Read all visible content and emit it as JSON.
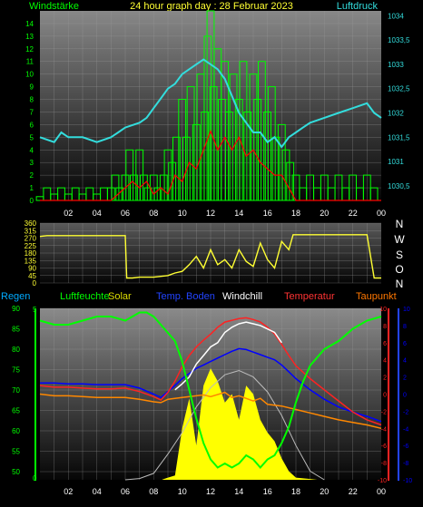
{
  "header": {
    "left_label": "Windstärke",
    "title": "24 hour graph day : 28 Februar 2023",
    "right_label": "Luftdruck"
  },
  "colors": {
    "wind": "#00ff00",
    "gust": "#ff0000",
    "pressure": "#33dddd",
    "direction": "#ffff33",
    "humidity": "#00ff00",
    "solar": "#ffff00",
    "soil_temp": "#0000ff",
    "windchill": "#ffffff",
    "temperature": "#ff2222",
    "dewpoint": "#ff8800",
    "rain": "#00ff00",
    "label_rain": "#00aaff",
    "label_soil": "#2244ff",
    "label_temp": "#ff3333",
    "label_dew": "#ff7700"
  },
  "legend": {
    "rain": "Regen",
    "humidity": "Luftfeuchte",
    "solar": "Solar",
    "soil": "Temp. Boden",
    "windchill": "Windchill",
    "temperature": "Temperatur",
    "dewpoint": "Taupunkt"
  },
  "compass": [
    "N",
    "W",
    "S",
    "O",
    "N"
  ],
  "x_ticks": [
    "02",
    "04",
    "06",
    "08",
    "10",
    "12",
    "14",
    "16",
    "18",
    "20",
    "22",
    "00"
  ],
  "chart_data": [
    {
      "type": "bar",
      "name": "wind",
      "ylim": [
        0,
        15
      ],
      "y_ticks": [
        0,
        1,
        2,
        3,
        4,
        5,
        6,
        7,
        8,
        9,
        10,
        11,
        12,
        13,
        14
      ],
      "y2lim": [
        1030.2,
        1034.1
      ],
      "y2_ticks": [
        "1030,5",
        "1031",
        "1031,5",
        "1032",
        "1032,5",
        "1033",
        "1033,5",
        "1034"
      ],
      "wind_bars": [
        [
          0,
          0.3
        ],
        [
          0.5,
          1
        ],
        [
          1,
          0.5
        ],
        [
          1.5,
          1
        ],
        [
          2,
          0.5
        ],
        [
          2.5,
          1
        ],
        [
          3,
          0.5
        ],
        [
          3.5,
          1
        ],
        [
          4,
          0.5
        ],
        [
          4.5,
          1
        ],
        [
          5,
          1
        ],
        [
          5.3,
          2
        ],
        [
          5.6,
          1
        ],
        [
          6,
          2
        ],
        [
          6.3,
          4
        ],
        [
          6.6,
          2
        ],
        [
          7,
          4
        ],
        [
          7.3,
          2
        ],
        [
          7.6,
          1
        ],
        [
          8,
          2
        ],
        [
          8.3,
          1
        ],
        [
          8.7,
          2
        ],
        [
          9,
          4
        ],
        [
          9.3,
          3
        ],
        [
          9.6,
          5
        ],
        [
          10,
          8
        ],
        [
          10.3,
          5
        ],
        [
          10.6,
          9
        ],
        [
          11,
          6
        ],
        [
          11.3,
          10
        ],
        [
          11.6,
          7
        ],
        [
          11.8,
          13
        ],
        [
          12,
          15
        ],
        [
          12.2,
          9
        ],
        [
          12.5,
          12
        ],
        [
          12.8,
          8
        ],
        [
          13,
          11
        ],
        [
          13.3,
          7
        ],
        [
          13.6,
          10
        ],
        [
          14,
          8
        ],
        [
          14.3,
          11
        ],
        [
          14.6,
          7
        ],
        [
          15,
          10
        ],
        [
          15.3,
          8
        ],
        [
          15.6,
          11
        ],
        [
          16,
          7
        ],
        [
          16.3,
          9
        ],
        [
          16.6,
          5
        ],
        [
          17,
          6
        ],
        [
          17.3,
          4
        ],
        [
          17.6,
          3
        ],
        [
          18,
          2
        ],
        [
          18.5,
          1
        ],
        [
          19,
          2
        ],
        [
          19.5,
          1
        ],
        [
          20,
          2
        ],
        [
          20.5,
          1
        ],
        [
          21,
          2
        ],
        [
          21.5,
          1
        ],
        [
          22,
          2
        ],
        [
          22.5,
          1
        ],
        [
          23,
          2
        ],
        [
          23.5,
          1
        ]
      ],
      "gust_x": [
        0,
        1,
        2,
        3,
        4,
        5,
        5.5,
        6,
        6.5,
        7,
        7.5,
        8,
        8.5,
        9,
        9.5,
        10,
        10.5,
        11,
        11.5,
        12,
        12.5,
        13,
        13.5,
        14,
        14.5,
        15,
        15.5,
        16,
        16.5,
        17,
        17.5,
        18,
        19,
        20,
        21,
        22,
        23,
        24
      ],
      "gust_y": [
        0,
        0,
        0,
        0,
        0,
        0,
        0.5,
        1,
        1.5,
        1,
        1.5,
        0.5,
        1,
        0.5,
        2,
        1.5,
        3,
        2.5,
        4,
        5.5,
        4,
        5,
        4,
        5,
        3.5,
        4,
        3,
        2.5,
        2,
        2,
        1,
        0,
        0,
        0,
        0,
        0,
        0,
        0
      ],
      "pressure_x": [
        0,
        1,
        1.5,
        2,
        3,
        4,
        5,
        5.5,
        6,
        7,
        7.5,
        8,
        8.5,
        9,
        9.5,
        10,
        10.5,
        11,
        11.5,
        12,
        12.5,
        13,
        14,
        15,
        15.5,
        16,
        16.5,
        17,
        17.5,
        18,
        18.5,
        19,
        20,
        21,
        22,
        23,
        23.5,
        24
      ],
      "pressure_y": [
        1031.5,
        1031.4,
        1031.6,
        1031.5,
        1031.5,
        1031.4,
        1031.5,
        1031.6,
        1031.7,
        1031.8,
        1031.9,
        1032.1,
        1032.3,
        1032.5,
        1032.6,
        1032.8,
        1032.9,
        1033,
        1033.1,
        1033,
        1032.9,
        1032.7,
        1032.0,
        1031.6,
        1031.6,
        1031.4,
        1031.5,
        1031.3,
        1031.5,
        1031.6,
        1031.7,
        1031.8,
        1031.9,
        1032.0,
        1032.1,
        1032.2,
        1032.0,
        1031.9
      ]
    },
    {
      "type": "line",
      "name": "wind direction",
      "ylim": [
        0,
        360
      ],
      "y_ticks": [
        0,
        45,
        90,
        135,
        180,
        225,
        270,
        315,
        360
      ],
      "x": [
        0,
        0.5,
        1,
        2,
        3,
        4,
        5,
        6,
        6.1,
        6.5,
        7,
        7.5,
        8,
        8.5,
        9,
        9.5,
        10,
        10.5,
        11,
        11.5,
        12,
        12.5,
        13,
        13.5,
        14,
        14.5,
        15,
        15.5,
        16,
        16.5,
        17,
        17.5,
        17.8,
        18,
        19,
        20,
        21,
        22,
        23,
        23.5,
        24
      ],
      "values": [
        280,
        285,
        285,
        285,
        285,
        285,
        285,
        285,
        30,
        30,
        35,
        35,
        35,
        40,
        45,
        60,
        70,
        110,
        160,
        90,
        200,
        110,
        140,
        90,
        200,
        130,
        100,
        240,
        140,
        90,
        250,
        200,
        290,
        290,
        290,
        290,
        290,
        290,
        290,
        30,
        30
      ]
    },
    {
      "type": "line",
      "name": "humidity temperature solar",
      "ylim": [
        48,
        90
      ],
      "y_ticks": [
        50,
        55,
        60,
        65,
        70,
        75,
        80,
        85,
        90
      ],
      "y2lim": [
        -10,
        10
      ],
      "y2_ticks": [
        -10,
        -8,
        -6,
        -4,
        -2,
        0,
        2,
        4,
        6,
        8,
        10
      ],
      "humidity_x": [
        0,
        1,
        2,
        3,
        4,
        5,
        6,
        7,
        7.5,
        8,
        8.5,
        9,
        9.5,
        10,
        10.5,
        11,
        11.5,
        12,
        12.5,
        13,
        13.5,
        14,
        14.5,
        15,
        15.5,
        16,
        16.5,
        17,
        17.5,
        18,
        18.5,
        19,
        20,
        21,
        22,
        23,
        24
      ],
      "humidity_y": [
        87,
        86,
        86,
        87,
        88,
        88,
        87,
        89,
        89,
        88,
        86,
        84,
        82,
        77,
        70,
        63,
        57,
        53,
        51,
        52,
        51,
        52,
        54,
        53,
        51,
        53,
        54,
        57,
        61,
        67,
        72,
        76,
        80,
        82,
        85,
        87,
        88
      ],
      "temp_x": [
        0,
        1,
        2,
        3,
        4,
        5,
        6,
        7,
        8,
        8.5,
        9,
        9.5,
        10,
        10.5,
        11,
        11.5,
        12,
        12.5,
        13,
        13.5,
        14,
        14.5,
        15,
        15.5,
        16,
        16.5,
        17,
        17.5,
        18,
        19,
        20,
        21,
        22,
        23,
        24
      ],
      "temp_y": [
        1.0,
        0.8,
        0.8,
        0.7,
        0.6,
        0.6,
        0.7,
        0.3,
        -0.3,
        -0.7,
        0.2,
        1.5,
        3.2,
        4.5,
        5.5,
        6.3,
        7.0,
        7.8,
        8.4,
        8.6,
        8.8,
        8.9,
        8.7,
        8.4,
        7.8,
        7.0,
        5.8,
        4.5,
        3.3,
        1.8,
        0.5,
        -0.8,
        -2.1,
        -3.0,
        -3.6
      ],
      "windchill_x": [
        9.5,
        10,
        10.5,
        11,
        11.5,
        12,
        12.5,
        13,
        13.5,
        14,
        14.5,
        15,
        15.5,
        16,
        16.5,
        17
      ],
      "windchill_y": [
        0.5,
        1.2,
        2.0,
        3.5,
        4.5,
        5.5,
        6.0,
        7.2,
        7.8,
        8.2,
        8.4,
        8.2,
        8.0,
        7.6,
        7.2,
        6.0
      ],
      "soil_x": [
        0,
        1,
        2,
        3,
        4,
        5,
        6,
        7,
        8,
        8.5,
        9,
        9.5,
        10,
        10.5,
        11,
        11.5,
        12,
        12.5,
        13,
        13.5,
        14,
        14.5,
        15,
        15.5,
        16,
        16.5,
        17,
        17.5,
        18,
        19,
        20,
        21,
        22,
        23,
        24
      ],
      "soil_y": [
        1.3,
        1.3,
        1.2,
        1.2,
        1.1,
        1.1,
        1.1,
        0.7,
        0.0,
        -0.4,
        0.3,
        1.0,
        1.8,
        2.4,
        3.0,
        3.4,
        3.8,
        4.2,
        4.6,
        5.0,
        5.3,
        5.2,
        4.9,
        4.6,
        4.3,
        4.0,
        3.4,
        2.6,
        1.8,
        0.5,
        -0.6,
        -1.5,
        -2.1,
        -2.6,
        -3.2
      ],
      "dew_x": [
        0,
        1,
        2,
        3,
        4,
        5,
        6,
        7,
        8,
        8.5,
        9,
        10,
        11,
        11.5,
        12,
        13,
        13.5,
        14,
        15,
        15.5,
        16,
        17,
        18,
        19,
        20,
        21,
        22,
        23,
        24
      ],
      "dew_y": [
        0.0,
        -0.2,
        -0.2,
        -0.3,
        -0.4,
        -0.4,
        -0.4,
        -0.6,
        -0.9,
        -1.0,
        -0.6,
        -0.4,
        -0.2,
        -0.1,
        -0.3,
        0.2,
        -0.4,
        -0.2,
        -0.8,
        -0.5,
        -1.2,
        -1.4,
        -1.8,
        -2.2,
        -2.6,
        -3.0,
        -3.3,
        -3.6,
        -4.0
      ],
      "solar_x": [
        8.6,
        9,
        9.5,
        10,
        10.5,
        11,
        11.5,
        12,
        12.5,
        13,
        13.5,
        14,
        14.5,
        15,
        15.5,
        16,
        16.5,
        17,
        17.5,
        18,
        19,
        19.5
      ],
      "solar_y": [
        0.05,
        0.5,
        1.0,
        12,
        19,
        8,
        22,
        26,
        23,
        18,
        20,
        14,
        22,
        20,
        14,
        11,
        9,
        5,
        2,
        0.5,
        0.2,
        0
      ],
      "theoretical_solar_x": [
        6,
        7,
        8,
        9,
        10,
        11,
        12,
        13,
        14,
        15,
        16,
        17,
        18,
        19,
        20
      ],
      "theoretical_solar_y": [
        0,
        0.3,
        1.5,
        6,
        11,
        17,
        21.5,
        24.5,
        25.5,
        24,
        20.5,
        15,
        8,
        2,
        0
      ]
    }
  ]
}
